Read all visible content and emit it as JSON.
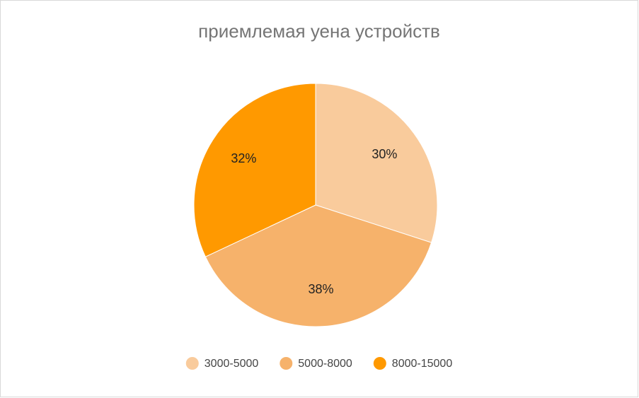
{
  "chart_data": {
    "type": "pie",
    "title": "приемлемая уена устройств",
    "categories": [
      "3000-5000",
      "5000-8000",
      "8000-15000"
    ],
    "values": [
      30,
      38,
      32
    ],
    "value_labels": [
      "30%",
      "38%",
      "32%"
    ],
    "colors": [
      "#f9cb9c",
      "#f6b26b",
      "#ff9900"
    ],
    "legend": "bottom"
  }
}
